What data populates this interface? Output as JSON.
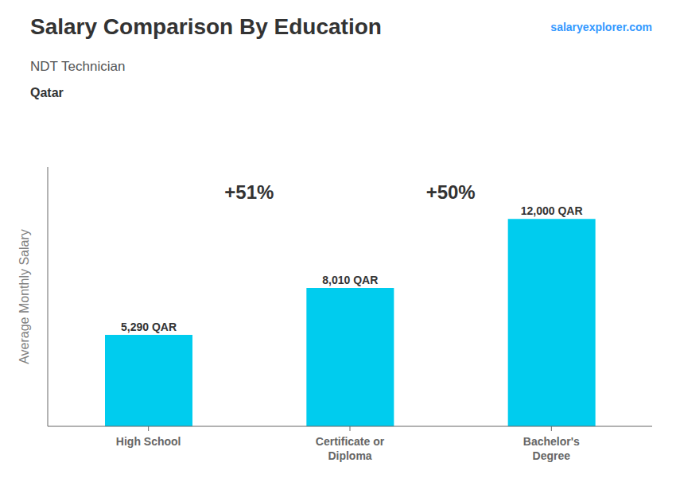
{
  "chart_data": {
    "type": "bar",
    "title": "Salary Comparison By Education",
    "subtitle": "NDT Technician",
    "annotations": [
      "Qatar",
      "salaryexplorer.com"
    ],
    "change_labels": [
      "+51%",
      "+50%"
    ],
    "categories": [
      "High School",
      "Certificate or\nDiploma",
      "Bachelor's\nDegree"
    ],
    "values": [
      5290,
      8010,
      12000
    ],
    "value_labels": [
      "5,290 QAR",
      "8,010 QAR",
      "12,000 QAR"
    ],
    "data_labels": true,
    "color": "#00ccee",
    "ylabel": "Average Monthly Salary",
    "ylim": [
      0,
      15000
    ],
    "grid": false,
    "tick_labels": "x"
  }
}
